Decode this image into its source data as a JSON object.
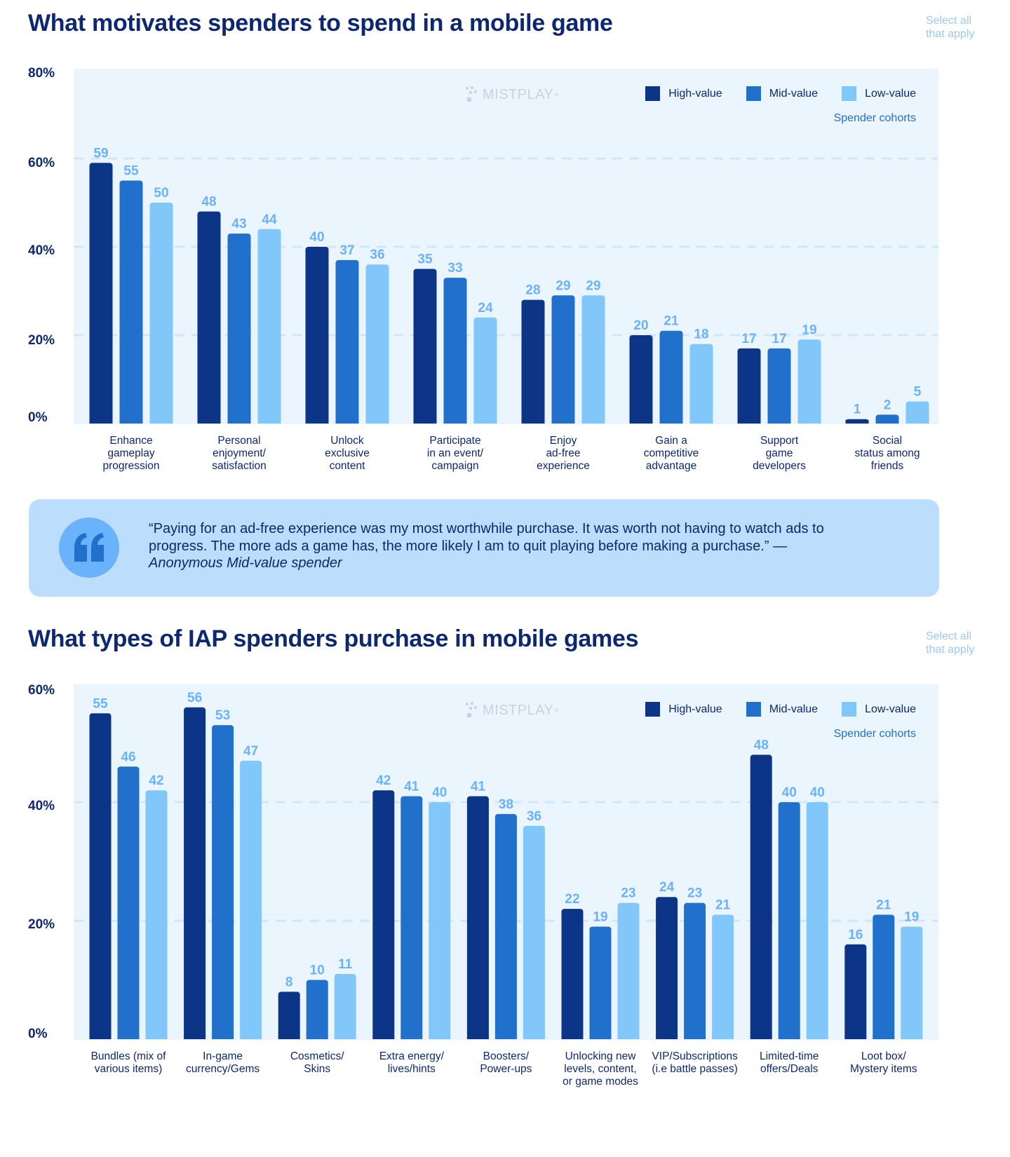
{
  "colors": {
    "high": "#0d3587",
    "mid": "#2070cc",
    "low": "#82c7f9",
    "label": "#6ab2fb",
    "grid": "#cfe6fb"
  },
  "legend": {
    "items": [
      {
        "key": "high",
        "label": "High-value"
      },
      {
        "key": "mid",
        "label": "Mid-value"
      },
      {
        "key": "low",
        "label": "Low-value"
      }
    ],
    "caption": "Spender cohorts"
  },
  "logo": {
    "text": "MISTPLAY",
    "mark": "®"
  },
  "select_note": {
    "line1": "Select all",
    "line2": "that apply"
  },
  "quote": {
    "text": "“Paying for an ad-free experience was my most worthwhile purchase. It was worth not having to watch ads to progress. The more ads a game has, the more likely I am to quit playing before making a purchase.” — ",
    "attribution": "Anonymous Mid-value spender"
  },
  "chart_data": [
    {
      "type": "bar",
      "title": "What motivates spenders to spend in a mobile game",
      "xlabel": "",
      "ylabel": "",
      "ylim": [
        0,
        80
      ],
      "yticks": [
        "80%",
        "60%",
        "40%",
        "20%",
        "0%"
      ],
      "ytick_values": [
        80,
        60,
        40,
        20,
        0
      ],
      "grid": true,
      "legend_position": "top-right",
      "categories": [
        "Enhance\ngameplay\nprogression",
        "Personal\nenjoyment/\nsatisfaction",
        "Unlock\nexclusive\ncontent",
        "Participate\nin an event/\ncampaign",
        "Enjoy\nad-free\nexperience",
        "Gain a\ncompetitive\nadvantage",
        "Support\ngame\ndevelopers",
        "Social\nstatus among\nfriends"
      ],
      "series": [
        {
          "name": "High-value",
          "values": [
            59,
            48,
            40,
            35,
            28,
            20,
            17,
            1
          ]
        },
        {
          "name": "Mid-value",
          "values": [
            55,
            43,
            37,
            33,
            29,
            21,
            17,
            2
          ]
        },
        {
          "name": "Low-value",
          "values": [
            50,
            44,
            36,
            24,
            29,
            18,
            19,
            5
          ]
        }
      ]
    },
    {
      "type": "bar",
      "title": "What types of IAP spenders purchase in mobile games",
      "xlabel": "",
      "ylabel": "",
      "ylim": [
        0,
        60
      ],
      "yticks": [
        "60%",
        "40%",
        "20%",
        "0%"
      ],
      "ytick_values": [
        60,
        40,
        20,
        0
      ],
      "grid": true,
      "legend_position": "top-right",
      "categories": [
        "Bundles (mix of\nvarious items)",
        "In-game\ncurrency/Gems",
        "Cosmetics/\nSkins",
        "Extra energy/\nlives/hints",
        "Boosters/\nPower-ups",
        "Unlocking new\nlevels, content,\nor game modes",
        "VIP/Subscriptions\n(i.e battle passes)",
        "Limited-time\noffers/Deals",
        "Loot box/\nMystery items"
      ],
      "series": [
        {
          "name": "High-value",
          "values": [
            55,
            56,
            8,
            42,
            41,
            22,
            24,
            48,
            16
          ]
        },
        {
          "name": "Mid-value",
          "values": [
            46,
            53,
            10,
            41,
            38,
            19,
            23,
            40,
            21
          ]
        },
        {
          "name": "Low-value",
          "values": [
            42,
            47,
            11,
            40,
            36,
            23,
            21,
            40,
            19
          ]
        }
      ]
    }
  ]
}
